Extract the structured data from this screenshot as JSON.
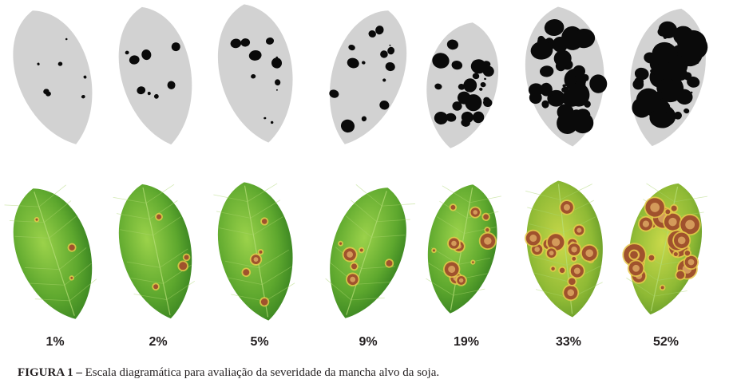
{
  "figure": {
    "label": "FIGURA 1 –",
    "caption": "Escala diagramática para avaliação da severidade da mancha alvo da soja."
  },
  "scale": [
    {
      "label": "1%",
      "severity": 1
    },
    {
      "label": "2%",
      "severity": 2
    },
    {
      "label": "5%",
      "severity": 5
    },
    {
      "label": "9%",
      "severity": 9
    },
    {
      "label": "19%",
      "severity": 19
    },
    {
      "label": "33%",
      "severity": 33
    },
    {
      "label": "52%",
      "severity": 52
    }
  ],
  "colors": {
    "schematic_leaf": "#d2d2d2",
    "lesion_dark": "#0a0a0a",
    "leaf_green": "#4f9a2a",
    "leaf_green_light": "#8cc83c",
    "lesion_brown": "#a0522d",
    "lesion_halo": "#e6c84a",
    "label_text": "#231f20"
  }
}
